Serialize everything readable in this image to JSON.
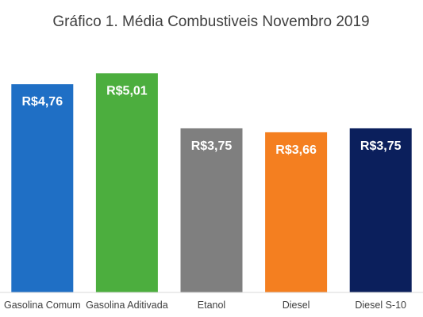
{
  "chart_data": {
    "type": "bar",
    "title": "Gráfico 1. Média Combustiveis Novembro 2019",
    "categories": [
      "Gasolina Comum",
      "Gasolina Aditivada",
      "Etanol",
      "Diesel",
      "Diesel S-10"
    ],
    "values": [
      4.76,
      5.01,
      3.75,
      3.66,
      3.75
    ],
    "data_labels": [
      "R$4,76",
      "R$5,01",
      "R$3,75",
      "R$3,66",
      "R$3,75"
    ],
    "colors": [
      "#1f6fc5",
      "#4cae3e",
      "#7f7f7f",
      "#f47f20",
      "#0b1f5c"
    ],
    "ylim": [
      0,
      5.56
    ],
    "grid": false,
    "legend": "none"
  }
}
